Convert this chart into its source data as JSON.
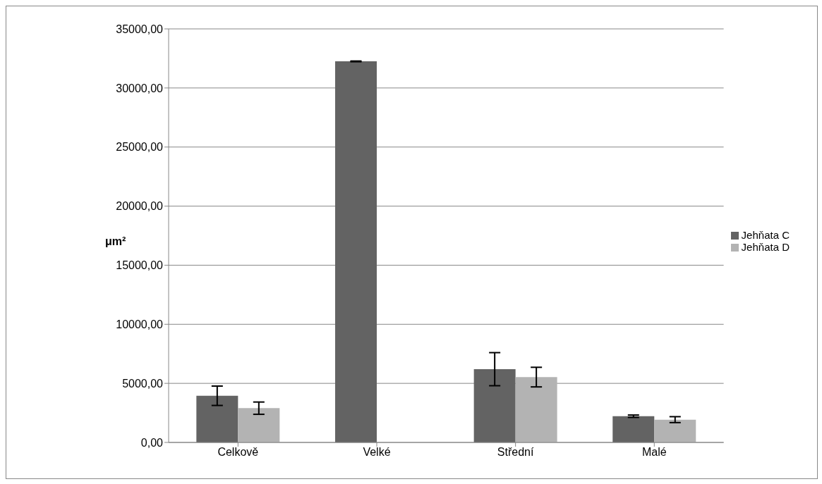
{
  "chart_data": {
    "type": "bar",
    "ylabel": "μm²",
    "categories": [
      "Celkově",
      "Velké",
      "Střední",
      "Malé"
    ],
    "series": [
      {
        "name": "Jehňata C",
        "color": "#636363",
        "values": [
          3950,
          32250,
          6200,
          2220
        ],
        "errors": [
          820,
          30,
          1400,
          100
        ]
      },
      {
        "name": "Jehňata D",
        "color": "#b3b3b3",
        "values": [
          2900,
          null,
          5530,
          1930
        ],
        "errors": [
          520,
          null,
          830,
          250
        ]
      }
    ],
    "ylim": [
      0,
      35000
    ],
    "yticks": [
      {
        "value": 0,
        "label": "0,00"
      },
      {
        "value": 5000,
        "label": "5000,00"
      },
      {
        "value": 10000,
        "label": "10000,00"
      },
      {
        "value": 15000,
        "label": "15000,00"
      },
      {
        "value": 20000,
        "label": "20000,00"
      },
      {
        "value": 25000,
        "label": "25000,00"
      },
      {
        "value": 30000,
        "label": "30000,00"
      },
      {
        "value": 35000,
        "label": "35000,00"
      }
    ],
    "grid": "y",
    "legend": "right"
  }
}
